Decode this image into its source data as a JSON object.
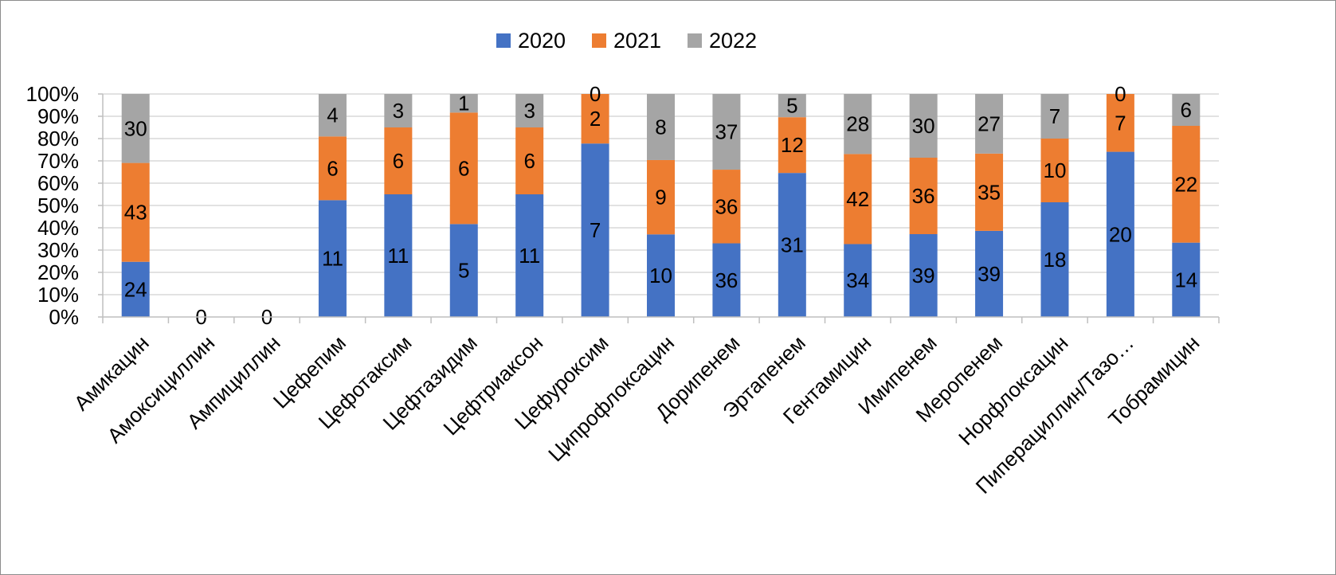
{
  "chart_data": {
    "type": "bar",
    "stacking": "percent",
    "categories": [
      "Амикацин",
      "Амоксициллин",
      "Ампициллин",
      "Цефепим",
      "Цефотаксим",
      "Цефтазидим",
      "Цефтриаксон",
      "Цефуроксим",
      "Ципрофлоксацин",
      "Дорипенем",
      "Эртапенем",
      "Гентамицин",
      "Имипенем",
      "Меропенем",
      "Норфлоксацин",
      "Пиперациллин/Тазо…",
      "Тобрамицин"
    ],
    "series": [
      {
        "name": "2020",
        "color": "#4472C4",
        "values": [
          24,
          0,
          0,
          11,
          11,
          5,
          11,
          7,
          10,
          36,
          31,
          34,
          39,
          39,
          18,
          20,
          14
        ]
      },
      {
        "name": "2021",
        "color": "#ED7D31",
        "values": [
          43,
          0,
          0,
          6,
          6,
          6,
          6,
          2,
          9,
          36,
          12,
          42,
          36,
          35,
          10,
          7,
          22
        ]
      },
      {
        "name": "2022",
        "color": "#A5A5A5",
        "values": [
          30,
          0,
          0,
          4,
          3,
          1,
          3,
          0,
          8,
          37,
          5,
          28,
          30,
          27,
          7,
          0,
          6
        ]
      }
    ],
    "y_ticks": [
      "0%",
      "10%",
      "20%",
      "30%",
      "40%",
      "50%",
      "60%",
      "70%",
      "80%",
      "90%",
      "100%"
    ],
    "ylim": [
      0,
      100
    ],
    "grid": true,
    "legend_position": "top-center",
    "title": "",
    "xlabel": "",
    "ylabel": ""
  }
}
